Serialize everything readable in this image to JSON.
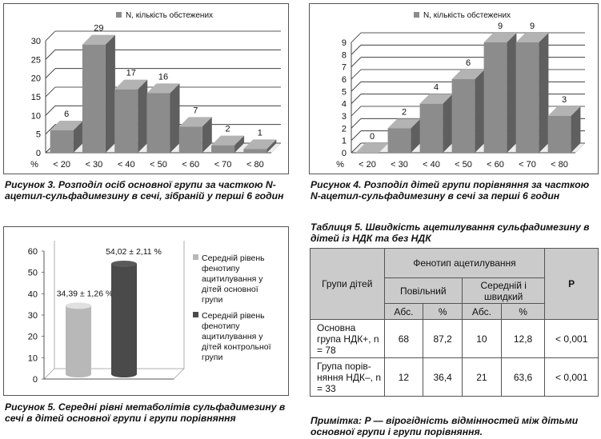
{
  "figure3": {
    "caption": "Рисунок 3. Розподіл осіб основної групи за част­кою N-ацетил-сульфадимезину в сечі, зібраній у перші 6 годин",
    "chart_data": {
      "type": "bar",
      "legend": "N, кількість обстежених",
      "legend_position": "top",
      "categories": [
        "< 20",
        "< 30",
        "< 40",
        "< 50",
        "< 60",
        "< 70",
        "< 80"
      ],
      "values": [
        6,
        29,
        17,
        16,
        7,
        2,
        1
      ],
      "x_prefix": "%",
      "ylim": [
        0,
        30
      ],
      "yticks": [
        "0",
        "5",
        "10",
        "15",
        "20",
        "25",
        "30"
      ],
      "grid": true,
      "color": "#8c8c8c"
    }
  },
  "figure4": {
    "caption": "Рисунок 4. Розподіл дітей групи порівняння за часткою N-ацетил-сульфадимезину в сечі за пер­ші 6 годин",
    "chart_data": {
      "type": "bar",
      "legend": "N, кількість обстежених",
      "legend_position": "top",
      "categories": [
        "< 20",
        "< 30",
        "< 40",
        "< 50",
        "< 60",
        "< 70",
        "< 80"
      ],
      "values": [
        0,
        2,
        4,
        6,
        9,
        9,
        3
      ],
      "x_prefix": "%",
      "ylim": [
        0,
        9
      ],
      "yticks": [
        "0",
        "1",
        "2",
        "3",
        "4",
        "5",
        "6",
        "7",
        "8",
        "9"
      ],
      "grid": true,
      "color": "#8c8c8c"
    }
  },
  "figure5": {
    "caption": "Рисунок 5. Середні рівні метаболітів сульфадиме­зину в сечі в дітей основної групи і групи порів­няння",
    "chart_data": {
      "type": "bar",
      "series": [
        {
          "name": "Середній рівень фенотипу ацитилування у дітей основної групи",
          "value": 34.39,
          "label": "34,39 ± 1,26 %",
          "color": "#b8b8b8"
        },
        {
          "name": "Середній рівень фенотипу ацитилування у дітей контрольної групи",
          "value": 54.02,
          "label": "54,02 ± 2,11 %",
          "color": "#4a4a4a"
        }
      ],
      "ylim": [
        0,
        60
      ],
      "yticks": [
        "0",
        "10",
        "20",
        "30",
        "40",
        "50",
        "60"
      ],
      "legend_position": "right"
    }
  },
  "table5": {
    "title": "Таблиця 5. Швидкість ацетилування сульфадиме­зину в дітей із НДК та без НДК",
    "head_groups": "Групи дітей",
    "head_phenotype": "Фенотип ацетилування",
    "head_slow": "Повільний",
    "head_fast": "Середній і швидкий",
    "head_p": "P",
    "head_abs1": "Абс.",
    "head_pct1": "%",
    "head_abs2": "Абс.",
    "head_pct2": "%",
    "rows": [
      {
        "group": "Основна група НДК+, n = 78",
        "abs1": "68",
        "pct1": "87,2",
        "abs2": "10",
        "pct2": "12,8",
        "p": "< 0,001"
      },
      {
        "group": "Група порів­няння НДК–, n = 33",
        "abs1": "12",
        "pct1": "36,4",
        "abs2": "21",
        "pct2": "63,6",
        "p": "< 0,001"
      }
    ],
    "note": "Примітка: P — вірогідність відмінностей між діть­ми основної групи і групи порівняння."
  }
}
